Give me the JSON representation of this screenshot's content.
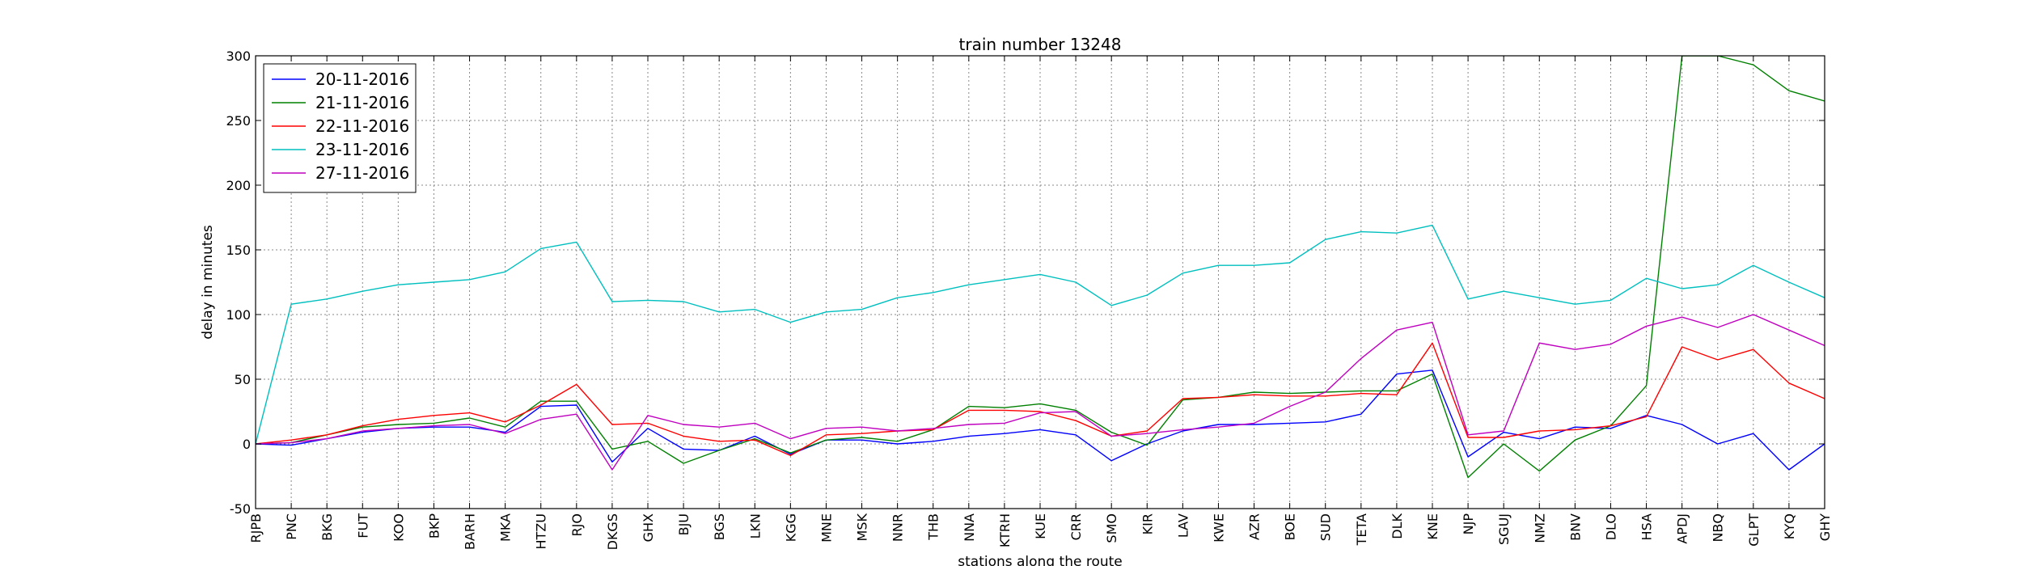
{
  "chart_data": {
    "type": "line",
    "title": "train number 13248",
    "xlabel": "stations along the route",
    "ylabel": "delay in minutes",
    "ylim": [
      -50,
      300
    ],
    "yticks": [
      -50,
      0,
      50,
      100,
      150,
      200,
      250,
      300
    ],
    "grid": true,
    "legend_position": "top-left",
    "categories": [
      "RJPB",
      "PNC",
      "BKG",
      "FUT",
      "KOO",
      "BKP",
      "BARH",
      "MKA",
      "HTZU",
      "RJO",
      "DKGS",
      "GHX",
      "BJU",
      "BGS",
      "LKN",
      "KGG",
      "MNE",
      "MSK",
      "NNR",
      "THB",
      "NNA",
      "KTRH",
      "KUE",
      "CRR",
      "SMO",
      "KIR",
      "LAV",
      "KWE",
      "AZR",
      "BOE",
      "SUD",
      "TETA",
      "DLK",
      "KNE",
      "NJP",
      "SGUJ",
      "NMZ",
      "BNV",
      "DLO",
      "HSA",
      "APDJ",
      "NBQ",
      "GLPT",
      "KYQ",
      "GHY"
    ],
    "series": [
      {
        "name": "20-11-2016",
        "color": "#0000ff",
        "values": [
          0,
          -1,
          4,
          9,
          12,
          13,
          13,
          9,
          29,
          30,
          -14,
          12,
          -4,
          -5,
          6,
          -8,
          3,
          3,
          0,
          2,
          6,
          8,
          11,
          7,
          -13,
          0,
          10,
          15,
          15,
          16,
          17,
          23,
          54,
          57,
          -10,
          9,
          4,
          13,
          12,
          22,
          15,
          0,
          8,
          -20,
          0
        ]
      },
      {
        "name": "21-11-2016",
        "color": "#008000",
        "values": [
          0,
          1,
          7,
          13,
          15,
          16,
          20,
          13,
          33,
          33,
          -4,
          2,
          -15,
          -5,
          4,
          -7,
          3,
          5,
          2,
          11,
          29,
          28,
          31,
          26,
          9,
          -1,
          34,
          36,
          40,
          39,
          40,
          41,
          41,
          54,
          -26,
          0,
          -21,
          3,
          14,
          45,
          300,
          300,
          293,
          273,
          265
        ]
      },
      {
        "name": "22-11-2016",
        "color": "#ff0000",
        "values": [
          0,
          3,
          7,
          14,
          19,
          22,
          24,
          17,
          30,
          46,
          15,
          16,
          6,
          2,
          3,
          -9,
          7,
          8,
          10,
          11,
          26,
          26,
          25,
          18,
          6,
          10,
          35,
          36,
          38,
          37,
          37,
          39,
          38,
          78,
          5,
          5,
          10,
          11,
          14,
          21,
          75,
          65,
          73,
          47,
          35
        ]
      },
      {
        "name": "23-11-2016",
        "color": "#00bfbf",
        "values": [
          0,
          108,
          112,
          118,
          123,
          125,
          127,
          133,
          151,
          156,
          110,
          111,
          110,
          102,
          104,
          94,
          102,
          104,
          113,
          117,
          123,
          127,
          131,
          125,
          107,
          115,
          132,
          138,
          138,
          140,
          158,
          164,
          163,
          169,
          112,
          118,
          113,
          108,
          111,
          128,
          120,
          123,
          138,
          125,
          113
        ]
      },
      {
        "name": "27-11-2016",
        "color": "#bf00bf",
        "values": [
          0,
          1,
          4,
          10,
          12,
          14,
          15,
          8,
          19,
          23,
          -20,
          22,
          15,
          13,
          16,
          4,
          12,
          13,
          10,
          12,
          15,
          16,
          24,
          25,
          6,
          8,
          11,
          13,
          16,
          29,
          40,
          66,
          88,
          94,
          7,
          10,
          78,
          73,
          77,
          91,
          98,
          90,
          100,
          88,
          76
        ]
      }
    ]
  }
}
